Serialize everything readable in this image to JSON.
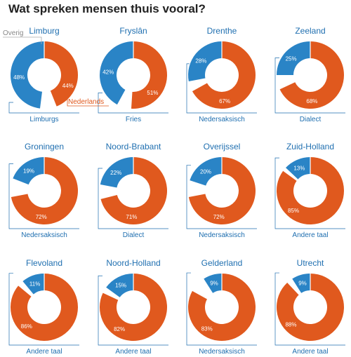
{
  "title": "Wat spreken mensen thuis vooral?",
  "colors": {
    "nederlands": "#e0591e",
    "other": "#2a84c6",
    "remainder": "#ffffff",
    "label": "#1f6fb0",
    "overig_line": "#aaaaaa",
    "overig_text": "#888888"
  },
  "legend": {
    "overig": "Overig",
    "nederlands": "Nederlands"
  },
  "chart_data": [
    {
      "type": "pie",
      "title": "Limburg",
      "series": [
        {
          "name": "Limburgs",
          "value": 48
        },
        {
          "name": "Nederlands",
          "value": 44
        }
      ],
      "other_label": "Limburgs"
    },
    {
      "type": "pie",
      "title": "Fryslân",
      "series": [
        {
          "name": "Fries",
          "value": 42
        },
        {
          "name": "Nederlands",
          "value": 51
        }
      ],
      "other_label": "Fries"
    },
    {
      "type": "pie",
      "title": "Drenthe",
      "series": [
        {
          "name": "Nedersaksisch",
          "value": 28
        },
        {
          "name": "Nederlands",
          "value": 67
        }
      ],
      "other_label": "Nedersaksisch"
    },
    {
      "type": "pie",
      "title": "Zeeland",
      "series": [
        {
          "name": "Dialect",
          "value": 25
        },
        {
          "name": "Nederlands",
          "value": 68
        }
      ],
      "other_label": "Dialect"
    },
    {
      "type": "pie",
      "title": "Groningen",
      "series": [
        {
          "name": "Nedersaksisch",
          "value": 19
        },
        {
          "name": "Nederlands",
          "value": 72
        }
      ],
      "other_label": "Nedersaksisch"
    },
    {
      "type": "pie",
      "title": "Noord-Brabant",
      "series": [
        {
          "name": "Dialect",
          "value": 22
        },
        {
          "name": "Nederlands",
          "value": 71
        }
      ],
      "other_label": "Dialect"
    },
    {
      "type": "pie",
      "title": "Overijssel",
      "series": [
        {
          "name": "Nedersaksisch",
          "value": 20
        },
        {
          "name": "Nederlands",
          "value": 72
        }
      ],
      "other_label": "Nedersaksisch"
    },
    {
      "type": "pie",
      "title": "Zuid-Holland",
      "series": [
        {
          "name": "Andere taal",
          "value": 13
        },
        {
          "name": "Nederlands",
          "value": 85
        }
      ],
      "other_label": "Andere taal"
    },
    {
      "type": "pie",
      "title": "Flevoland",
      "series": [
        {
          "name": "Andere taal",
          "value": 11
        },
        {
          "name": "Nederlands",
          "value": 86
        }
      ],
      "other_label": "Andere taal"
    },
    {
      "type": "pie",
      "title": "Noord-Holland",
      "series": [
        {
          "name": "Andere taal",
          "value": 15
        },
        {
          "name": "Nederlands",
          "value": 82
        }
      ],
      "other_label": "Andere taal"
    },
    {
      "type": "pie",
      "title": "Gelderland",
      "series": [
        {
          "name": "Nedersaksisch",
          "value": 9
        },
        {
          "name": "Nederlands",
          "value": 83
        }
      ],
      "other_label": "Nedersaksisch"
    },
    {
      "type": "pie",
      "title": "Utrecht",
      "series": [
        {
          "name": "Andere taal",
          "value": 9
        },
        {
          "name": "Nederlands",
          "value": 88
        }
      ],
      "other_label": "Andere taal"
    }
  ]
}
